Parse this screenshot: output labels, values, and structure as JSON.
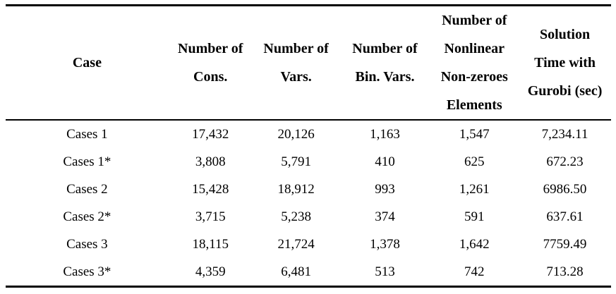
{
  "colors": {
    "text": "#000000",
    "background": "#ffffff",
    "rule": "#000000"
  },
  "table": {
    "columns": [
      {
        "id": "case",
        "label": "Case"
      },
      {
        "id": "num_cons",
        "label": "Number of\nCons."
      },
      {
        "id": "num_vars",
        "label": "Number of\nVars."
      },
      {
        "id": "num_bin_vars",
        "label": "Number of\nBin. Vars."
      },
      {
        "id": "num_nonlinear",
        "label": "Number of\nNonlinear\nNon-zeroes\nElements"
      },
      {
        "id": "solution_time",
        "label": "Solution\nTime with\nGurobi (sec)"
      }
    ],
    "rows": [
      {
        "case": "Cases 1",
        "cons": "17,432",
        "vars": "20,126",
        "bin_vars": "1,163",
        "nonlinear": "1,547",
        "time": "7,234.11"
      },
      {
        "case": "Cases 1*",
        "cons": "3,808",
        "vars": "5,791",
        "bin_vars": "410",
        "nonlinear": "625",
        "time": "672.23"
      },
      {
        "case": "Cases 2",
        "cons": "15,428",
        "vars": "18,912",
        "bin_vars": "993",
        "nonlinear": "1,261",
        "time": "6986.50"
      },
      {
        "case": "Cases 2*",
        "cons": "3,715",
        "vars": "5,238",
        "bin_vars": "374",
        "nonlinear": "591",
        "time": "637.61"
      },
      {
        "case": "Cases 3",
        "cons": "18,115",
        "vars": "21,724",
        "bin_vars": "1,378",
        "nonlinear": "1,642",
        "time": "7759.49"
      },
      {
        "case": "Cases 3*",
        "cons": "4,359",
        "vars": "6,481",
        "bin_vars": "513",
        "nonlinear": "742",
        "time": "713.28"
      }
    ]
  }
}
